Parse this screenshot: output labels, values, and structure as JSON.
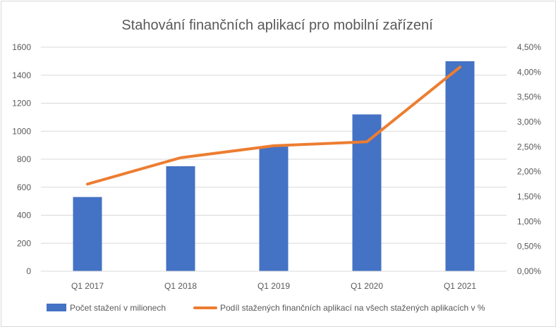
{
  "chart_data": {
    "type": "bar",
    "title": "Stahování finančních aplikací pro mobilní zařízení",
    "categories": [
      "Q1 2017",
      "Q1 2018",
      "Q1 2019",
      "Q1 2020",
      "Q1 2021"
    ],
    "series": [
      {
        "name": "Počet stažení v milionech",
        "type": "bar",
        "axis": "left",
        "color": "#4472c4",
        "values": [
          530,
          750,
          890,
          1120,
          1500
        ]
      },
      {
        "name": "Podíl stažených finančních aplikací na všech stažených aplikacích v %",
        "type": "line",
        "axis": "right",
        "color": "#ed7d31",
        "values": [
          1.75,
          2.28,
          2.52,
          2.6,
          4.1
        ]
      }
    ],
    "y_left": {
      "range": [
        0,
        1600
      ],
      "ticks": [
        "0",
        "200",
        "400",
        "600",
        "800",
        "1000",
        "1200",
        "1400",
        "1600"
      ]
    },
    "y_right": {
      "range": [
        0,
        4.5
      ],
      "ticks": [
        "0,00%",
        "0,50%",
        "1,00%",
        "1,50%",
        "2,00%",
        "2,50%",
        "3,00%",
        "3,50%",
        "4,00%",
        "4,50%"
      ]
    },
    "grid": true,
    "legend": "bottom"
  }
}
